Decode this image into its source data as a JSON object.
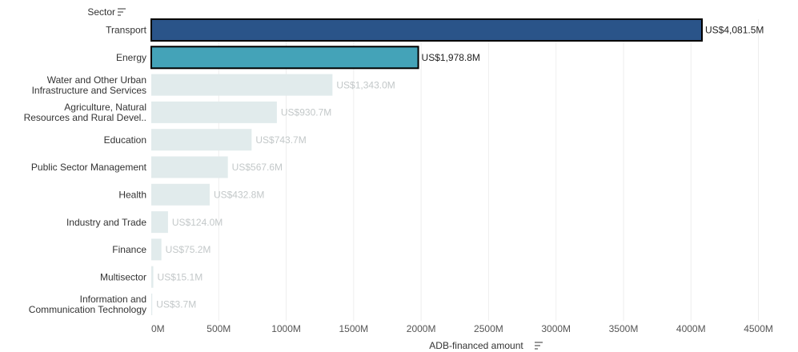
{
  "chart_data": {
    "type": "bar",
    "orientation": "horizontal",
    "ylabel": "Sector",
    "xlabel": "ADB-financed amount",
    "xlim": [
      0,
      4800
    ],
    "x_ticks": [
      0,
      500,
      1000,
      1500,
      2000,
      2500,
      3000,
      3500,
      4000,
      4500
    ],
    "x_tick_labels": [
      "0M",
      "500M",
      "1000M",
      "1500M",
      "2000M",
      "2500M",
      "3000M",
      "3500M",
      "4000M",
      "4500M"
    ],
    "grid": true,
    "categories": [
      [
        "Transport"
      ],
      [
        "Energy"
      ],
      [
        "Water and Other Urban",
        "Infrastructure and Services"
      ],
      [
        "Agriculture, Natural",
        "Resources and Rural Devel.."
      ],
      [
        "Education"
      ],
      [
        "Public Sector Management"
      ],
      [
        "Health"
      ],
      [
        "Industry and Trade"
      ],
      [
        "Finance"
      ],
      [
        "Multisector"
      ],
      [
        "Information and",
        "Communication Technology"
      ]
    ],
    "values": [
      4081.5,
      1978.8,
      1343.0,
      930.7,
      743.7,
      567.6,
      432.8,
      124.0,
      75.2,
      15.1,
      3.7
    ],
    "value_labels": [
      "US$4,081.5M",
      "US$1,978.8M",
      "US$1,343.0M",
      "US$930.7M",
      "US$743.7M",
      "US$567.6M",
      "US$432.8M",
      "US$124.0M",
      "US$75.2M",
      "US$15.1M",
      "US$3.7M"
    ],
    "highlighted": [
      true,
      true,
      false,
      false,
      false,
      false,
      false,
      false,
      false,
      false,
      false
    ],
    "bar_colors": [
      "#2a5489",
      "#44a3b8",
      "#e1ebec",
      "#e1ebec",
      "#e1ebec",
      "#e1ebec",
      "#e1ebec",
      "#e1ebec",
      "#e1ebec",
      "#e1ebec",
      "#e1ebec"
    ],
    "colors": {
      "highlight_label": "#222222",
      "muted_label": "#c3c8c9",
      "gridline": "#eeeeee",
      "outline": "#000000"
    },
    "sort_icon": "sort-descending-icon"
  }
}
